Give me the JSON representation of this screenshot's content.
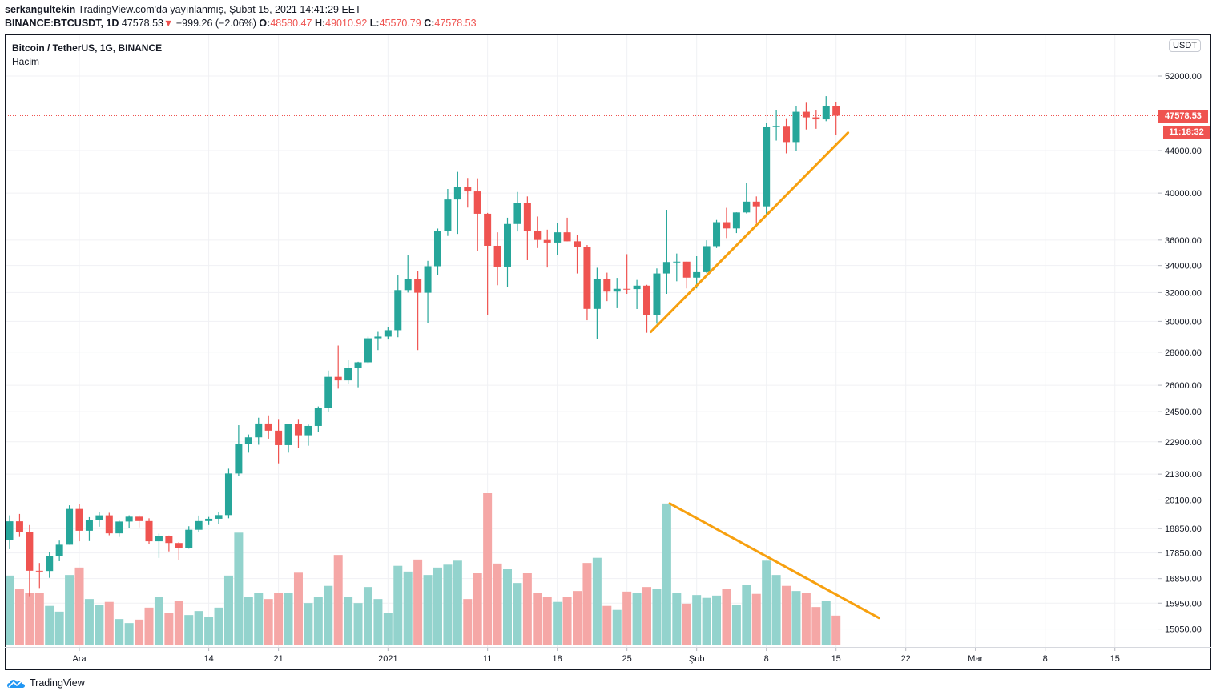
{
  "header": {
    "author": "serkangultekin",
    "published": "TradingView.com'da yayınlanmış, Şubat 15, 2021 14:41:29 EET",
    "symbol": "BINANCE:BTCUSDT, 1D",
    "last": "47578.53",
    "change_arrow": "▼",
    "change": "−999.26 (−2.06%)",
    "o_label": "O:",
    "o": "48580.47",
    "h_label": "H:",
    "h": "49010.92",
    "l_label": "L:",
    "l": "45570.79",
    "c_label": "C:",
    "c": "47578.53"
  },
  "legend": {
    "title": "Bitcoin / TetherUS, 1G, BINANCE",
    "indicator": "Hacim"
  },
  "price_axis": {
    "currency": "USDT",
    "last_price_label": "47578.53",
    "countdown": "11:18:32"
  },
  "footer": {
    "brand": "TradingView"
  },
  "colors": {
    "up": "#26a69a",
    "down": "#ef5350",
    "vol_up": "#93d3cd",
    "vol_down": "#f5a7a6",
    "trend": "#f7a00f"
  },
  "chart_data": {
    "type": "candlestick",
    "title": "Bitcoin / TetherUS, 1G, BINANCE",
    "scale": "log",
    "first_date": "2020-11-24",
    "last_date": "2021-02-15",
    "y_ticks": [
      52000,
      44000,
      40000,
      36000,
      34000,
      32000,
      30000,
      28000,
      26000,
      24500,
      22900,
      21300,
      20100,
      18850,
      17850,
      16850,
      15950,
      15050
    ],
    "x_ticks": [
      {
        "label": "Ara",
        "bar": 7
      },
      {
        "label": "14",
        "bar": 20
      },
      {
        "label": "21",
        "bar": 27
      },
      {
        "label": "2021",
        "bar": 38
      },
      {
        "label": "11",
        "bar": 48
      },
      {
        "label": "18",
        "bar": 55
      },
      {
        "label": "25",
        "bar": 62
      },
      {
        "label": "Şub",
        "bar": 69
      },
      {
        "label": "8",
        "bar": 76
      },
      {
        "label": "15",
        "bar": 83
      },
      {
        "label": "22",
        "bar": 90
      },
      {
        "label": "Mar",
        "bar": 97
      },
      {
        "label": "8",
        "bar": 104
      },
      {
        "label": "15",
        "bar": 111
      }
    ],
    "ohlc": [
      [
        18370,
        19420,
        18000,
        19160
      ],
      [
        19160,
        19480,
        18500,
        18720
      ],
      [
        18720,
        19000,
        16200,
        17150
      ],
      [
        17150,
        17450,
        16500,
        17140
      ],
      [
        17140,
        17900,
        16880,
        17720
      ],
      [
        17720,
        18350,
        17520,
        18180
      ],
      [
        18180,
        19860,
        18180,
        19700
      ],
      [
        19700,
        19920,
        18320,
        18760
      ],
      [
        18760,
        19340,
        18330,
        19200
      ],
      [
        19200,
        19570,
        18930,
        19420
      ],
      [
        19420,
        19530,
        18570,
        18650
      ],
      [
        18650,
        19190,
        18500,
        19150
      ],
      [
        19150,
        19420,
        18860,
        19360
      ],
      [
        19360,
        19420,
        18900,
        19170
      ],
      [
        19170,
        19290,
        18200,
        18320
      ],
      [
        18320,
        18640,
        17650,
        18550
      ],
      [
        18550,
        18560,
        17910,
        18250
      ],
      [
        18250,
        18290,
        17570,
        18030
      ],
      [
        18030,
        18950,
        18020,
        18800
      ],
      [
        18800,
        19410,
        18700,
        19170
      ],
      [
        19170,
        19350,
        19000,
        19270
      ],
      [
        19270,
        19570,
        19050,
        19430
      ],
      [
        19430,
        21560,
        19290,
        21330
      ],
      [
        21330,
        23770,
        21230,
        22800
      ],
      [
        22800,
        23280,
        22350,
        23130
      ],
      [
        23130,
        24170,
        22750,
        23860
      ],
      [
        23860,
        24300,
        23060,
        23480
      ],
      [
        23480,
        24100,
        21820,
        22730
      ],
      [
        22730,
        23840,
        22350,
        23820
      ],
      [
        23820,
        24100,
        22600,
        23240
      ],
      [
        23240,
        23800,
        22700,
        23730
      ],
      [
        23730,
        24790,
        23430,
        24690
      ],
      [
        24690,
        26870,
        24500,
        26490
      ],
      [
        26490,
        28420,
        25800,
        26280
      ],
      [
        26280,
        27500,
        26100,
        27040
      ],
      [
        27040,
        27400,
        25880,
        27370
      ],
      [
        27370,
        28990,
        27320,
        28880
      ],
      [
        28880,
        29300,
        28130,
        28990
      ],
      [
        28990,
        29600,
        28800,
        29410
      ],
      [
        29410,
        33300,
        28950,
        32180
      ],
      [
        32180,
        34780,
        32000,
        33000
      ],
      [
        33000,
        33600,
        28130,
        31990
      ],
      [
        31990,
        34360,
        29900,
        33950
      ],
      [
        33950,
        36940,
        33290,
        36770
      ],
      [
        36770,
        40370,
        36330,
        39430
      ],
      [
        39430,
        41950,
        36500,
        40580
      ],
      [
        40580,
        41380,
        38720,
        40150
      ],
      [
        40150,
        41350,
        35110,
        38190
      ],
      [
        38190,
        38260,
        30420,
        35540
      ],
      [
        35540,
        36630,
        32530,
        33920
      ],
      [
        33920,
        37850,
        32380,
        37320
      ],
      [
        37320,
        40100,
        36700,
        39140
      ],
      [
        39140,
        39700,
        34410,
        36770
      ],
      [
        36770,
        37950,
        35360,
        36010
      ],
      [
        36010,
        36850,
        33850,
        35800
      ],
      [
        35800,
        37400,
        34800,
        36630
      ],
      [
        36630,
        37850,
        35900,
        35900
      ],
      [
        35900,
        36400,
        33400,
        35470
      ],
      [
        35470,
        35600,
        30070,
        30850
      ],
      [
        30850,
        33830,
        28850,
        33000
      ],
      [
        33000,
        33460,
        31390,
        32070
      ],
      [
        32070,
        33070,
        30900,
        32270
      ],
      [
        32270,
        34880,
        31910,
        32250
      ],
      [
        32250,
        32920,
        30840,
        32500
      ],
      [
        32500,
        32560,
        29240,
        30400
      ],
      [
        30400,
        33780,
        29840,
        33400
      ],
      [
        33400,
        38530,
        31910,
        34270
      ],
      [
        34270,
        34930,
        32820,
        34300
      ],
      [
        34300,
        34300,
        32300,
        33090
      ],
      [
        33090,
        34720,
        32300,
        33500
      ],
      [
        33500,
        35980,
        33420,
        35510
      ],
      [
        35510,
        37660,
        35360,
        37470
      ],
      [
        37470,
        38700,
        36160,
        36950
      ],
      [
        36950,
        38310,
        36570,
        38300
      ],
      [
        38300,
        40950,
        38220,
        39240
      ],
      [
        39240,
        39700,
        37350,
        38830
      ],
      [
        38830,
        46800,
        37990,
        46400
      ],
      [
        46400,
        48200,
        45000,
        46500
      ],
      [
        46500,
        47310,
        43730,
        44850
      ],
      [
        44850,
        48630,
        43990,
        48000
      ],
      [
        48000,
        48980,
        46130,
        47400
      ],
      [
        47400,
        48150,
        46200,
        47190
      ],
      [
        47190,
        49710,
        47000,
        48580
      ],
      [
        48580.47,
        49010.92,
        45570.79,
        47578.53
      ]
    ],
    "volume_k": [
      122,
      99,
      92,
      91,
      69,
      59,
      123,
      136,
      81,
      71,
      76,
      46,
      39,
      45,
      66,
      85,
      56,
      77,
      53,
      60,
      50,
      66,
      122,
      197,
      85,
      92,
      81,
      92,
      92,
      127,
      74,
      85,
      104,
      158,
      85,
      74,
      102,
      81,
      57,
      139,
      129,
      150,
      123,
      136,
      141,
      148,
      81,
      126,
      266,
      143,
      133,
      109,
      126,
      92,
      85,
      76,
      85,
      95,
      144,
      153,
      69,
      62,
      94,
      91,
      102,
      99,
      248,
      91,
      73,
      88,
      83,
      87,
      98,
      71,
      105,
      90,
      148,
      123,
      104,
      95,
      91,
      67,
      78,
      52
    ],
    "volume_max_k": 266,
    "last_price": 47578.53,
    "trendlines": [
      {
        "name": "price-support",
        "pane": "price",
        "from": {
          "bar": 64.4,
          "value": 29300
        },
        "to": {
          "bar": 84.2,
          "value": 45800
        }
      },
      {
        "name": "volume-decline",
        "pane": "volume",
        "from": {
          "bar": 66.3,
          "value": 248
        },
        "to": {
          "bar": 87.3,
          "value": 48
        }
      }
    ]
  }
}
